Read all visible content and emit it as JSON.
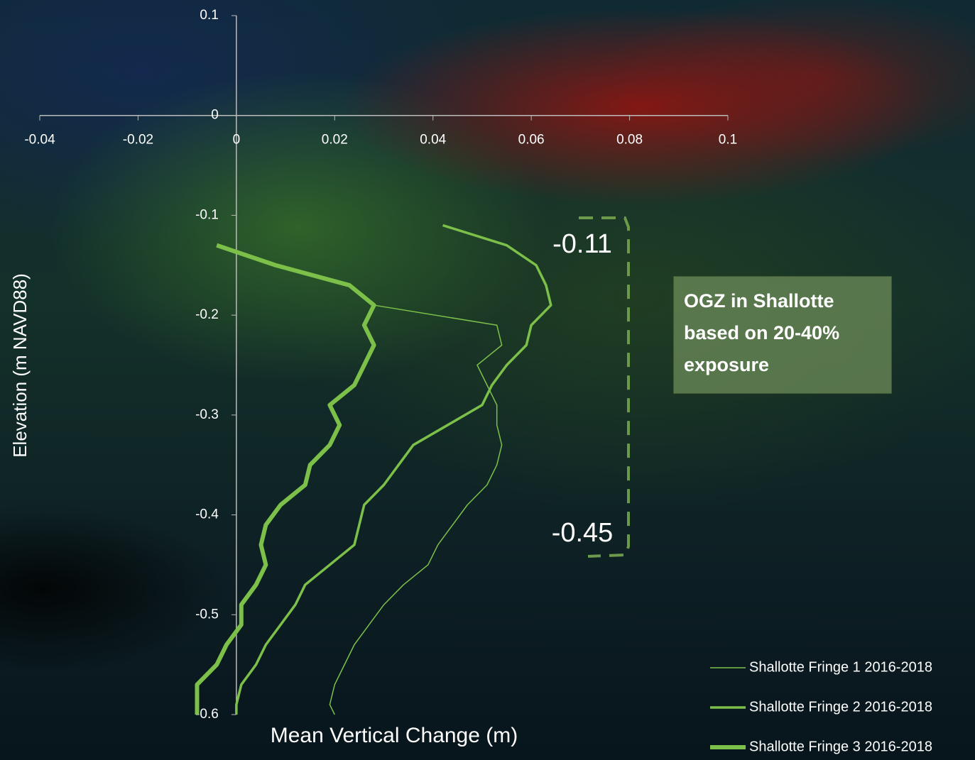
{
  "chart_data": {
    "type": "line",
    "xlabel": "Mean Vertical Change (m)",
    "ylabel": "Elevation (m NAVD88)",
    "xlim": [
      -0.04,
      0.1
    ],
    "xticks": [
      -0.04,
      -0.02,
      0,
      0.02,
      0.04,
      0.06,
      0.08,
      0.1
    ],
    "ylim": [
      -0.6,
      0.1
    ],
    "yticks": [
      0.1,
      0,
      -0.1,
      -0.2,
      -0.3,
      -0.4,
      -0.5,
      -0.6
    ],
    "legend": "bottom-right",
    "series": [
      {
        "name": "Shallotte Fringe 1 2016-2018",
        "color": "#7cc04a",
        "width": 1.5,
        "values": [
          0.028,
          0.053,
          0.054,
          0.049,
          0.051,
          0.053,
          0.053,
          0.054,
          0.053,
          0.051,
          0.047,
          0.044,
          0.041,
          0.039,
          0.034,
          0.03,
          0.027,
          0.024,
          0.022,
          0.02,
          0.019,
          0.02
        ],
        "elevation": [
          -0.19,
          -0.21,
          -0.23,
          -0.25,
          -0.27,
          -0.29,
          -0.31,
          -0.33,
          -0.35,
          -0.37,
          -0.39,
          -0.41,
          -0.43,
          -0.45,
          -0.47,
          -0.49,
          -0.51,
          -0.53,
          -0.55,
          -0.57,
          -0.59,
          -0.6
        ]
      },
      {
        "name": "Shallotte Fringe 2 2016-2018",
        "color": "#7cc04a",
        "width": 3.5,
        "values": [
          0.042,
          0.055,
          0.061,
          0.063,
          0.064,
          0.06,
          0.059,
          0.055,
          0.052,
          0.05,
          0.043,
          0.036,
          0.033,
          0.03,
          0.026,
          0.025,
          0.024,
          0.019,
          0.014,
          0.012,
          0.009,
          0.006,
          0.004,
          0.001,
          0,
          0
        ],
        "elevation": [
          -0.11,
          -0.13,
          -0.15,
          -0.17,
          -0.19,
          -0.21,
          -0.23,
          -0.25,
          -0.27,
          -0.29,
          -0.31,
          -0.33,
          -0.35,
          -0.37,
          -0.39,
          -0.41,
          -0.43,
          -0.45,
          -0.47,
          -0.49,
          -0.51,
          -0.53,
          -0.55,
          -0.57,
          -0.59,
          -0.6
        ]
      },
      {
        "name": "Shallotte Fringe 3 2016-2018",
        "color": "#7cc04a",
        "width": 6,
        "values": [
          -0.004,
          0.008,
          0.023,
          0.028,
          0.026,
          0.028,
          0.026,
          0.024,
          0.019,
          0.021,
          0.019,
          0.015,
          0.014,
          0.009,
          0.006,
          0.005,
          0.006,
          0.004,
          0.001,
          0.001,
          -0.002,
          -0.004,
          -0.008,
          -0.008,
          -0.008
        ],
        "elevation": [
          -0.13,
          -0.15,
          -0.17,
          -0.19,
          -0.21,
          -0.23,
          -0.25,
          -0.27,
          -0.29,
          -0.31,
          -0.33,
          -0.35,
          -0.37,
          -0.39,
          -0.41,
          -0.43,
          -0.45,
          -0.47,
          -0.49,
          -0.51,
          -0.53,
          -0.55,
          -0.57,
          -0.59,
          -0.6
        ]
      }
    ],
    "annotations": [
      "-0.11",
      "-0.45",
      "OGZ in Shallotte based on 20-40% exposure"
    ]
  }
}
